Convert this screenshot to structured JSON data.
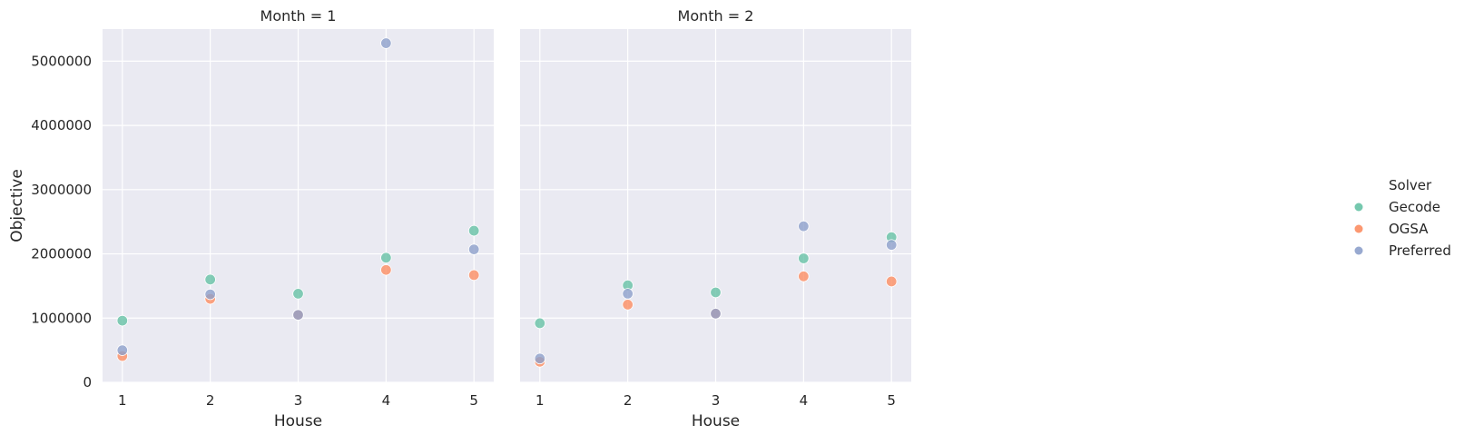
{
  "chart_data": {
    "type": "scatter",
    "xlabel": "House",
    "ylabel": "Objective",
    "x": [
      1,
      2,
      3,
      4,
      5
    ],
    "xticks": [
      "1",
      "2",
      "3",
      "4",
      "5"
    ],
    "ylim": [
      0,
      5500000
    ],
    "yticks": [
      0,
      1000000,
      2000000,
      3000000,
      4000000,
      5000000
    ],
    "ytick_labels": [
      "0",
      "1000000",
      "2000000",
      "3000000",
      "4000000",
      "5000000"
    ],
    "grid": true,
    "legend": {
      "title": "Solver",
      "placement": "right",
      "entries": [
        {
          "name": "Gecode",
          "color": "#66c2a5"
        },
        {
          "name": "OGSA",
          "color": "#fc8d62"
        },
        {
          "name": "Preferred",
          "color": "#8da0cb"
        }
      ]
    },
    "panels": [
      {
        "title": "Month = 1",
        "series": [
          {
            "name": "Gecode",
            "values": [
              960000,
              1600000,
              1380000,
              1940000,
              2360000
            ]
          },
          {
            "name": "OGSA",
            "values": [
              410000,
              1300000,
              1050000,
              1750000,
              1670000
            ]
          },
          {
            "name": "Preferred",
            "values": [
              500000,
              1370000,
              1050000,
              5280000,
              2070000
            ]
          }
        ]
      },
      {
        "title": "Month = 2",
        "series": [
          {
            "name": "Gecode",
            "values": [
              920000,
              1510000,
              1400000,
              1930000,
              2260000
            ]
          },
          {
            "name": "OGSA",
            "values": [
              320000,
              1210000,
              1070000,
              1650000,
              1570000
            ]
          },
          {
            "name": "Preferred",
            "values": [
              370000,
              1380000,
              1070000,
              2430000,
              2140000
            ]
          }
        ]
      }
    ]
  }
}
